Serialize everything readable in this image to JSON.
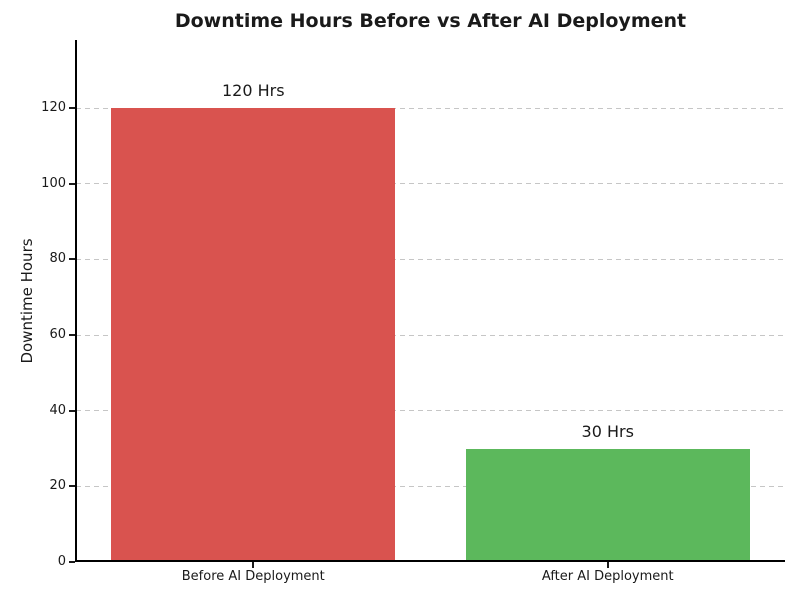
{
  "title": "Downtime Hours Before vs After AI Deployment",
  "chart_data": {
    "type": "bar",
    "title": "Downtime Hours Before vs After AI Deployment",
    "categories": [
      "Before AI Deployment",
      "After AI Deployment"
    ],
    "values": [
      120,
      30
    ],
    "bar_labels": [
      "120 Hrs",
      "30 Hrs"
    ],
    "bar_colors": [
      "#d9534f",
      "#5cb85c"
    ],
    "xlabel": "",
    "ylabel": "Downtime Hours",
    "ylim": [
      0,
      138
    ],
    "yticks": [
      0,
      20,
      40,
      60,
      80,
      100,
      120
    ],
    "grid": "horizontal-dashed",
    "legend": "none",
    "bar_width_fraction": 0.8
  },
  "colors": {
    "background": "#ffffff",
    "axis": "#000000",
    "gridline": "#c6c6c6",
    "text": "#1a1a1a",
    "bar_before": "#d9534f",
    "bar_after": "#5cb85c"
  }
}
